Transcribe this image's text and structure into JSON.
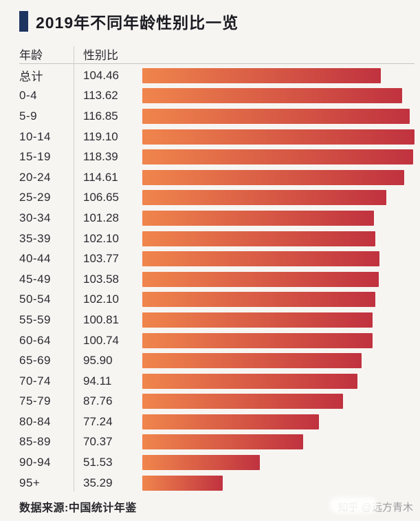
{
  "title": "2019年不同年龄性别比一览",
  "header": {
    "age_col": "年龄",
    "ratio_col": "性别比"
  },
  "chart_data": {
    "type": "bar",
    "orientation": "horizontal",
    "title": "2019年不同年龄性别比一览",
    "xlabel": "性别比",
    "ylabel": "年龄",
    "xlim": [
      0,
      120
    ],
    "grid": false,
    "legend": "none",
    "categories": [
      "总计",
      "0-4",
      "5-9",
      "10-14",
      "15-19",
      "20-24",
      "25-29",
      "30-34",
      "35-39",
      "40-44",
      "45-49",
      "50-54",
      "55-59",
      "60-64",
      "65-69",
      "70-74",
      "75-79",
      "80-84",
      "85-89",
      "90-94",
      "95+"
    ],
    "values": [
      104.46,
      113.62,
      116.85,
      119.1,
      118.39,
      114.61,
      106.65,
      101.28,
      102.1,
      103.77,
      103.58,
      102.1,
      100.81,
      100.74,
      95.9,
      94.11,
      87.76,
      77.24,
      70.37,
      51.53,
      35.29
    ]
  },
  "colors": {
    "accent_bullet": "#1d3461",
    "bar_gradient_start": "#f0854c",
    "bar_gradient_end": "#c0323f",
    "background": "#f7f5f2"
  },
  "footer": {
    "source": "数据来源:中国统计年鉴",
    "watermark": "知乎 @远方青木"
  }
}
